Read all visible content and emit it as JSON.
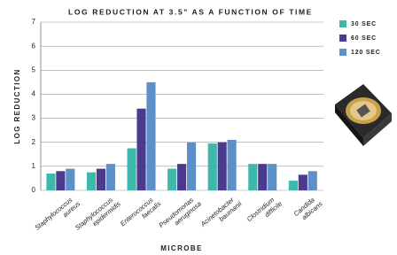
{
  "chart_data": {
    "type": "bar",
    "title": "LOG REDUCTION AT 3.5\" AS A FUNCTION OF TIME",
    "y_label": "LOG REDUCTION",
    "x_label": "MICROBE",
    "categories": [
      [
        "Staphylococcus",
        "aureus"
      ],
      [
        "Staphylococcus",
        "epidermidis"
      ],
      [
        "Enterococcus",
        "faecalis"
      ],
      [
        "Pseudomonas",
        "aeruginosa"
      ],
      [
        "Acinetobacter",
        "baumanii"
      ],
      [
        "Clostridium",
        "difficile"
      ],
      [
        "Candida",
        "albicans"
      ]
    ],
    "series": [
      {
        "name": "30 SEC",
        "color": "#3db8aa",
        "values": [
          0.7,
          0.75,
          1.75,
          0.9,
          1.95,
          1.1,
          0.4
        ]
      },
      {
        "name": "60 SEC",
        "color": "#4b3b8f",
        "values": [
          0.8,
          0.9,
          3.4,
          1.1,
          2.0,
          1.1,
          0.65
        ]
      },
      {
        "name": "120 SEC",
        "color": "#5d90c9",
        "values": [
          0.9,
          1.1,
          4.5,
          2.0,
          2.1,
          1.1,
          0.8
        ]
      }
    ],
    "ylim": [
      0,
      7
    ],
    "yticks": [
      0,
      1,
      2,
      3,
      4,
      5,
      6,
      7
    ],
    "grid": true
  }
}
